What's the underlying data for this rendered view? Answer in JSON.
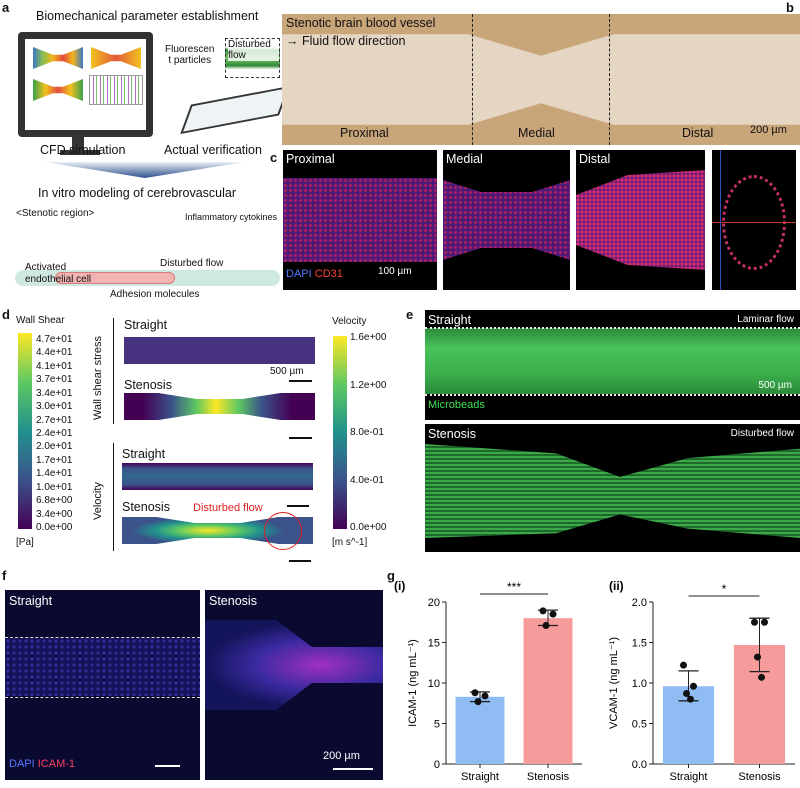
{
  "panel_labels": {
    "a": "a",
    "b": "b",
    "c": "c",
    "d": "d",
    "e": "e",
    "f": "f",
    "g": "g"
  },
  "a": {
    "title": "Biomechanical parameter establishment",
    "fluorescent": "Fluorescen\nt particles",
    "disturbed": "Disturbed flow",
    "cfd": "CFD simulation",
    "verification": "Actual verification",
    "modeling": "In vitro modeling of cerebrovascular",
    "stenotic": "<Stenotic region>",
    "cytokines": "Inflammatory cytokines",
    "disturbed_flow": "Disturbed flow",
    "activated": "Activated\nendothelial cell",
    "adhesion": "Adhesion molecules"
  },
  "b": {
    "title": "Stenotic brain blood vessel",
    "flow": "Fluid flow direction",
    "proximal": "Proximal",
    "medial": "Medial",
    "distal": "Distal",
    "scale": "200 µm"
  },
  "c": {
    "proximal": "Proximal",
    "medial": "Medial",
    "distal": "Distal",
    "dapi": "DAPI",
    "cd31": "CD31",
    "scale": "100 µm"
  },
  "d": {
    "wss_title": "Wall Shear",
    "wss_unit": "[Pa]",
    "wss_ticks": [
      "4.7e+01",
      "4.4e+01",
      "4.1e+01",
      "3.7e+01",
      "3.4e+01",
      "3.0e+01",
      "2.7e+01",
      "2.4e+01",
      "2.0e+01",
      "1.7e+01",
      "1.4e+01",
      "1.0e+01",
      "6.8e+00",
      "3.4e+00",
      "0.0e+00"
    ],
    "vel_title": "Velocity",
    "vel_unit": "[m s^-1]",
    "vel_ticks": [
      "1.6e+00",
      "1.2e+00",
      "8.0e-01",
      "4.0e-01",
      "0.0e+00"
    ],
    "group_wss": "Wall shear stress",
    "group_vel": "Velocity",
    "straight": "Straight",
    "stenosis": "Stenosis",
    "scale": "500 µm",
    "disturbed": "Disturbed flow"
  },
  "e": {
    "straight": "Straight",
    "laminar": "Laminar flow",
    "microbeads": "Microbeads",
    "scale": "500 µm",
    "stenosis": "Stenosis",
    "disturbed": "Disturbed flow"
  },
  "f": {
    "straight": "Straight",
    "stenosis": "Stenosis",
    "dapi": "DAPI",
    "icam": "ICAM-1",
    "scale": "200 µm"
  },
  "chart_data": [
    {
      "type": "bar",
      "panel": "(i)",
      "categories": [
        "Straight",
        "Stenosis"
      ],
      "values": [
        8.3,
        18.0
      ],
      "error_low": [
        7.7,
        17.1
      ],
      "error_high": [
        8.9,
        19.0
      ],
      "points": [
        [
          8.8,
          8.4,
          7.7
        ],
        [
          18.9,
          18.5,
          17.1
        ]
      ],
      "ylabel": "ICAM-1 (ng mL⁻¹)",
      "ylim": [
        0,
        20
      ],
      "yticks": [
        "0",
        "5",
        "10",
        "15",
        "20"
      ],
      "significance": "***",
      "colors": [
        "#8fbcf2",
        "#f59b9b"
      ]
    },
    {
      "type": "bar",
      "panel": "(ii)",
      "categories": [
        "Straight",
        "Stenosis"
      ],
      "values": [
        0.96,
        1.47
      ],
      "error_low": [
        0.78,
        1.14
      ],
      "error_high": [
        1.15,
        1.8
      ],
      "points": [
        [
          1.22,
          0.96,
          0.87,
          0.8
        ],
        [
          1.75,
          1.75,
          1.32,
          1.07
        ]
      ],
      "ylabel": "VCAM-1 (ng mL⁻¹)",
      "ylim": [
        0,
        2
      ],
      "yticks": [
        "0.0",
        "0.5",
        "1.0",
        "1.5",
        "2.0"
      ],
      "significance": "*",
      "colors": [
        "#8fbcf2",
        "#f59b9b"
      ]
    }
  ]
}
